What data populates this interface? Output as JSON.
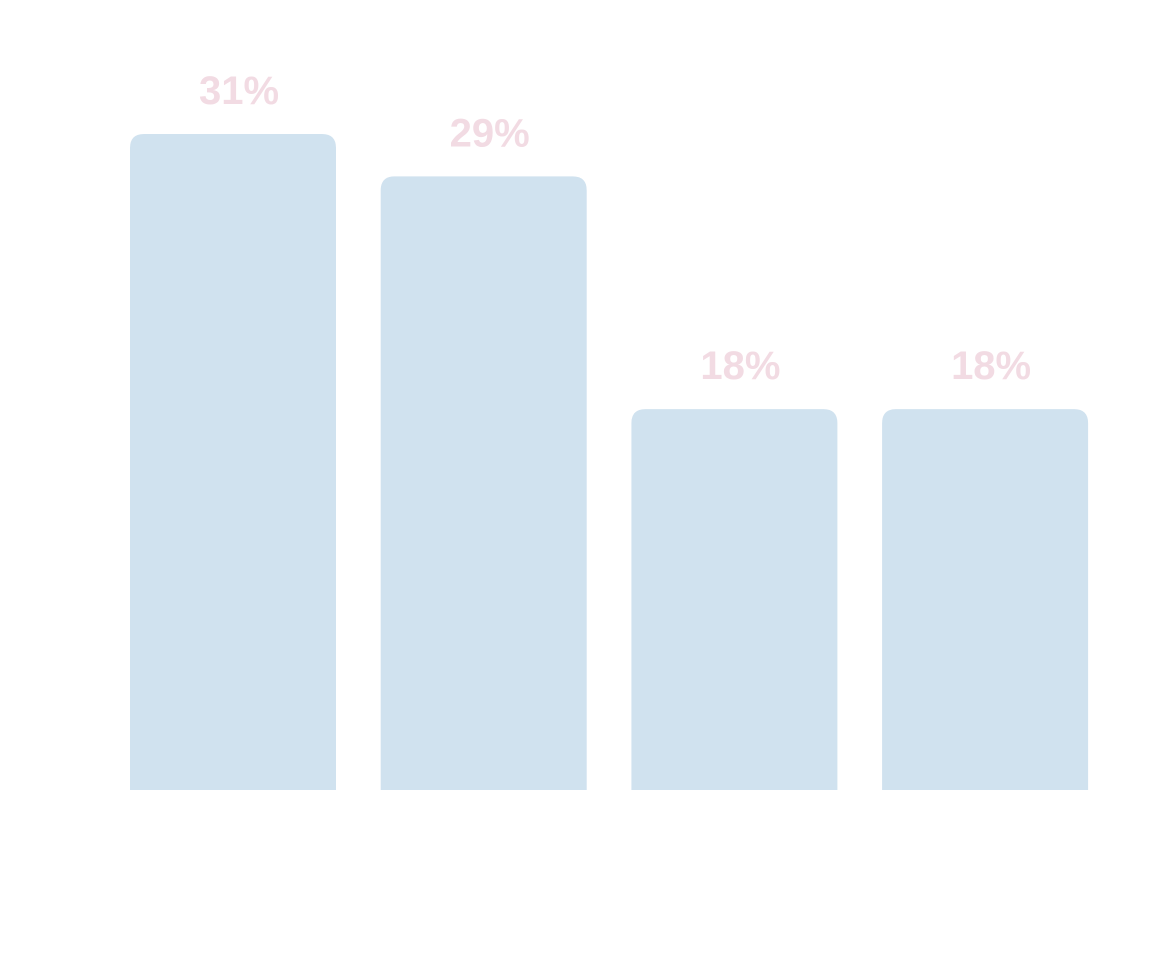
{
  "chart_data": {
    "type": "bar",
    "categories": [
      "",
      "",
      "",
      ""
    ],
    "values": [
      31,
      29,
      18,
      18
    ],
    "value_labels": [
      "31%",
      "29%",
      "18%",
      "18%"
    ],
    "unit": "%",
    "title": "",
    "xlabel": "",
    "ylabel": "",
    "ylim": [
      0,
      31
    ],
    "grid": false,
    "legend": "none",
    "colors": {
      "bar": "#d0e2ef",
      "label": "#f2dbe3",
      "background": "#ffffff"
    }
  }
}
